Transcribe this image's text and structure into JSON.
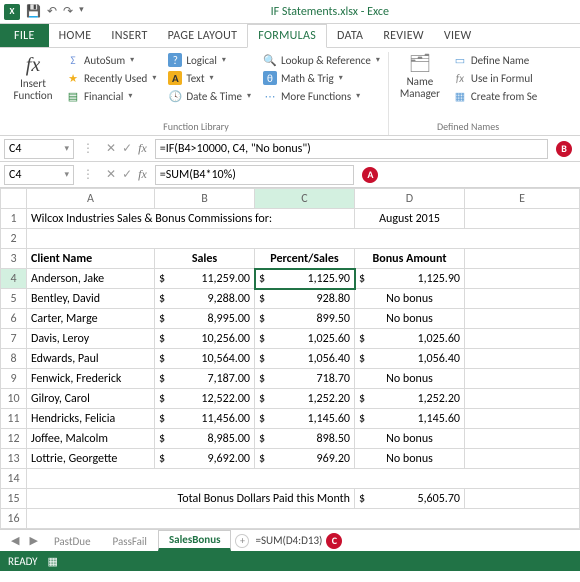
{
  "title": "IF Statements.xlsx - Exce",
  "ribbon_tabs": {
    "file": "FILE",
    "home": "HOME",
    "insert": "INSERT",
    "pagelayout": "PAGE LAYOUT",
    "formulas": "FORMULAS",
    "data": "DATA",
    "review": "REVIEW",
    "view": "VIEW"
  },
  "ribbon": {
    "insert_function": "Insert\nFunction",
    "autosum": "AutoSum",
    "recent": "Recently Used",
    "financial": "Financial",
    "logical": "Logical",
    "text": "Text",
    "datetime": "Date & Time",
    "lookup": "Lookup & Reference",
    "mathtrig": "Math & Trig",
    "more": "More Functions",
    "funclib_label": "Function Library",
    "name_mgr": "Name\nManager",
    "define": "Define Name",
    "useinf": "Use in Formul",
    "createfrom": "Create from Se",
    "defnames_label": "Defined Names"
  },
  "fbar1": {
    "name": "C4",
    "formula": "=IF(B4>10000, C4, \"No bonus\")",
    "marker": "B"
  },
  "fbar2": {
    "name": "C4",
    "formula": "=SUM(B4*10%)",
    "marker": "A"
  },
  "cols": [
    "A",
    "B",
    "C",
    "D",
    "E"
  ],
  "row1": {
    "title": "Wilcox Industries Sales & Bonus Commissions for:",
    "period": "August 2015"
  },
  "row3": {
    "a": "Client Name",
    "b": "Sales",
    "c": "Percent/Sales",
    "d": "Bonus Amount"
  },
  "rows": [
    {
      "n": "4",
      "a": "Anderson, Jake",
      "b": "11,259.00",
      "c": "1,125.90",
      "d": "1,125.90",
      "dbonus": true
    },
    {
      "n": "5",
      "a": "Bentley, David",
      "b": "9,288.00",
      "c": "928.80",
      "d": "No bonus",
      "dbonus": false
    },
    {
      "n": "6",
      "a": "Carter, Marge",
      "b": "8,995.00",
      "c": "899.50",
      "d": "No bonus",
      "dbonus": false
    },
    {
      "n": "7",
      "a": "Davis, Leroy",
      "b": "10,256.00",
      "c": "1,025.60",
      "d": "1,025.60",
      "dbonus": true
    },
    {
      "n": "8",
      "a": "Edwards, Paul",
      "b": "10,564.00",
      "c": "1,056.40",
      "d": "1,056.40",
      "dbonus": true
    },
    {
      "n": "9",
      "a": "Fenwick, Frederick",
      "b": "7,187.00",
      "c": "718.70",
      "d": "No bonus",
      "dbonus": false
    },
    {
      "n": "10",
      "a": "Gilroy, Carol",
      "b": "12,522.00",
      "c": "1,252.20",
      "d": "1,252.20",
      "dbonus": true
    },
    {
      "n": "11",
      "a": "Hendricks, Felicia",
      "b": "11,456.00",
      "c": "1,145.60",
      "d": "1,145.60",
      "dbonus": true
    },
    {
      "n": "12",
      "a": "Joffee, Malcolm",
      "b": "8,985.00",
      "c": "898.50",
      "d": "No bonus",
      "dbonus": false
    },
    {
      "n": "13",
      "a": "Lottrie, Georgette",
      "b": "9,692.00",
      "c": "969.20",
      "d": "No bonus",
      "dbonus": false
    }
  ],
  "row15": {
    "label": "Total Bonus Dollars Paid this Month",
    "value": "5,605.70"
  },
  "sheet_tabs": {
    "t1": "PastDue",
    "t2": "PassFail",
    "t3": "SalesBonus",
    "extra": "=SUM(D4:D13)",
    "marker": "C"
  },
  "status": "READY"
}
